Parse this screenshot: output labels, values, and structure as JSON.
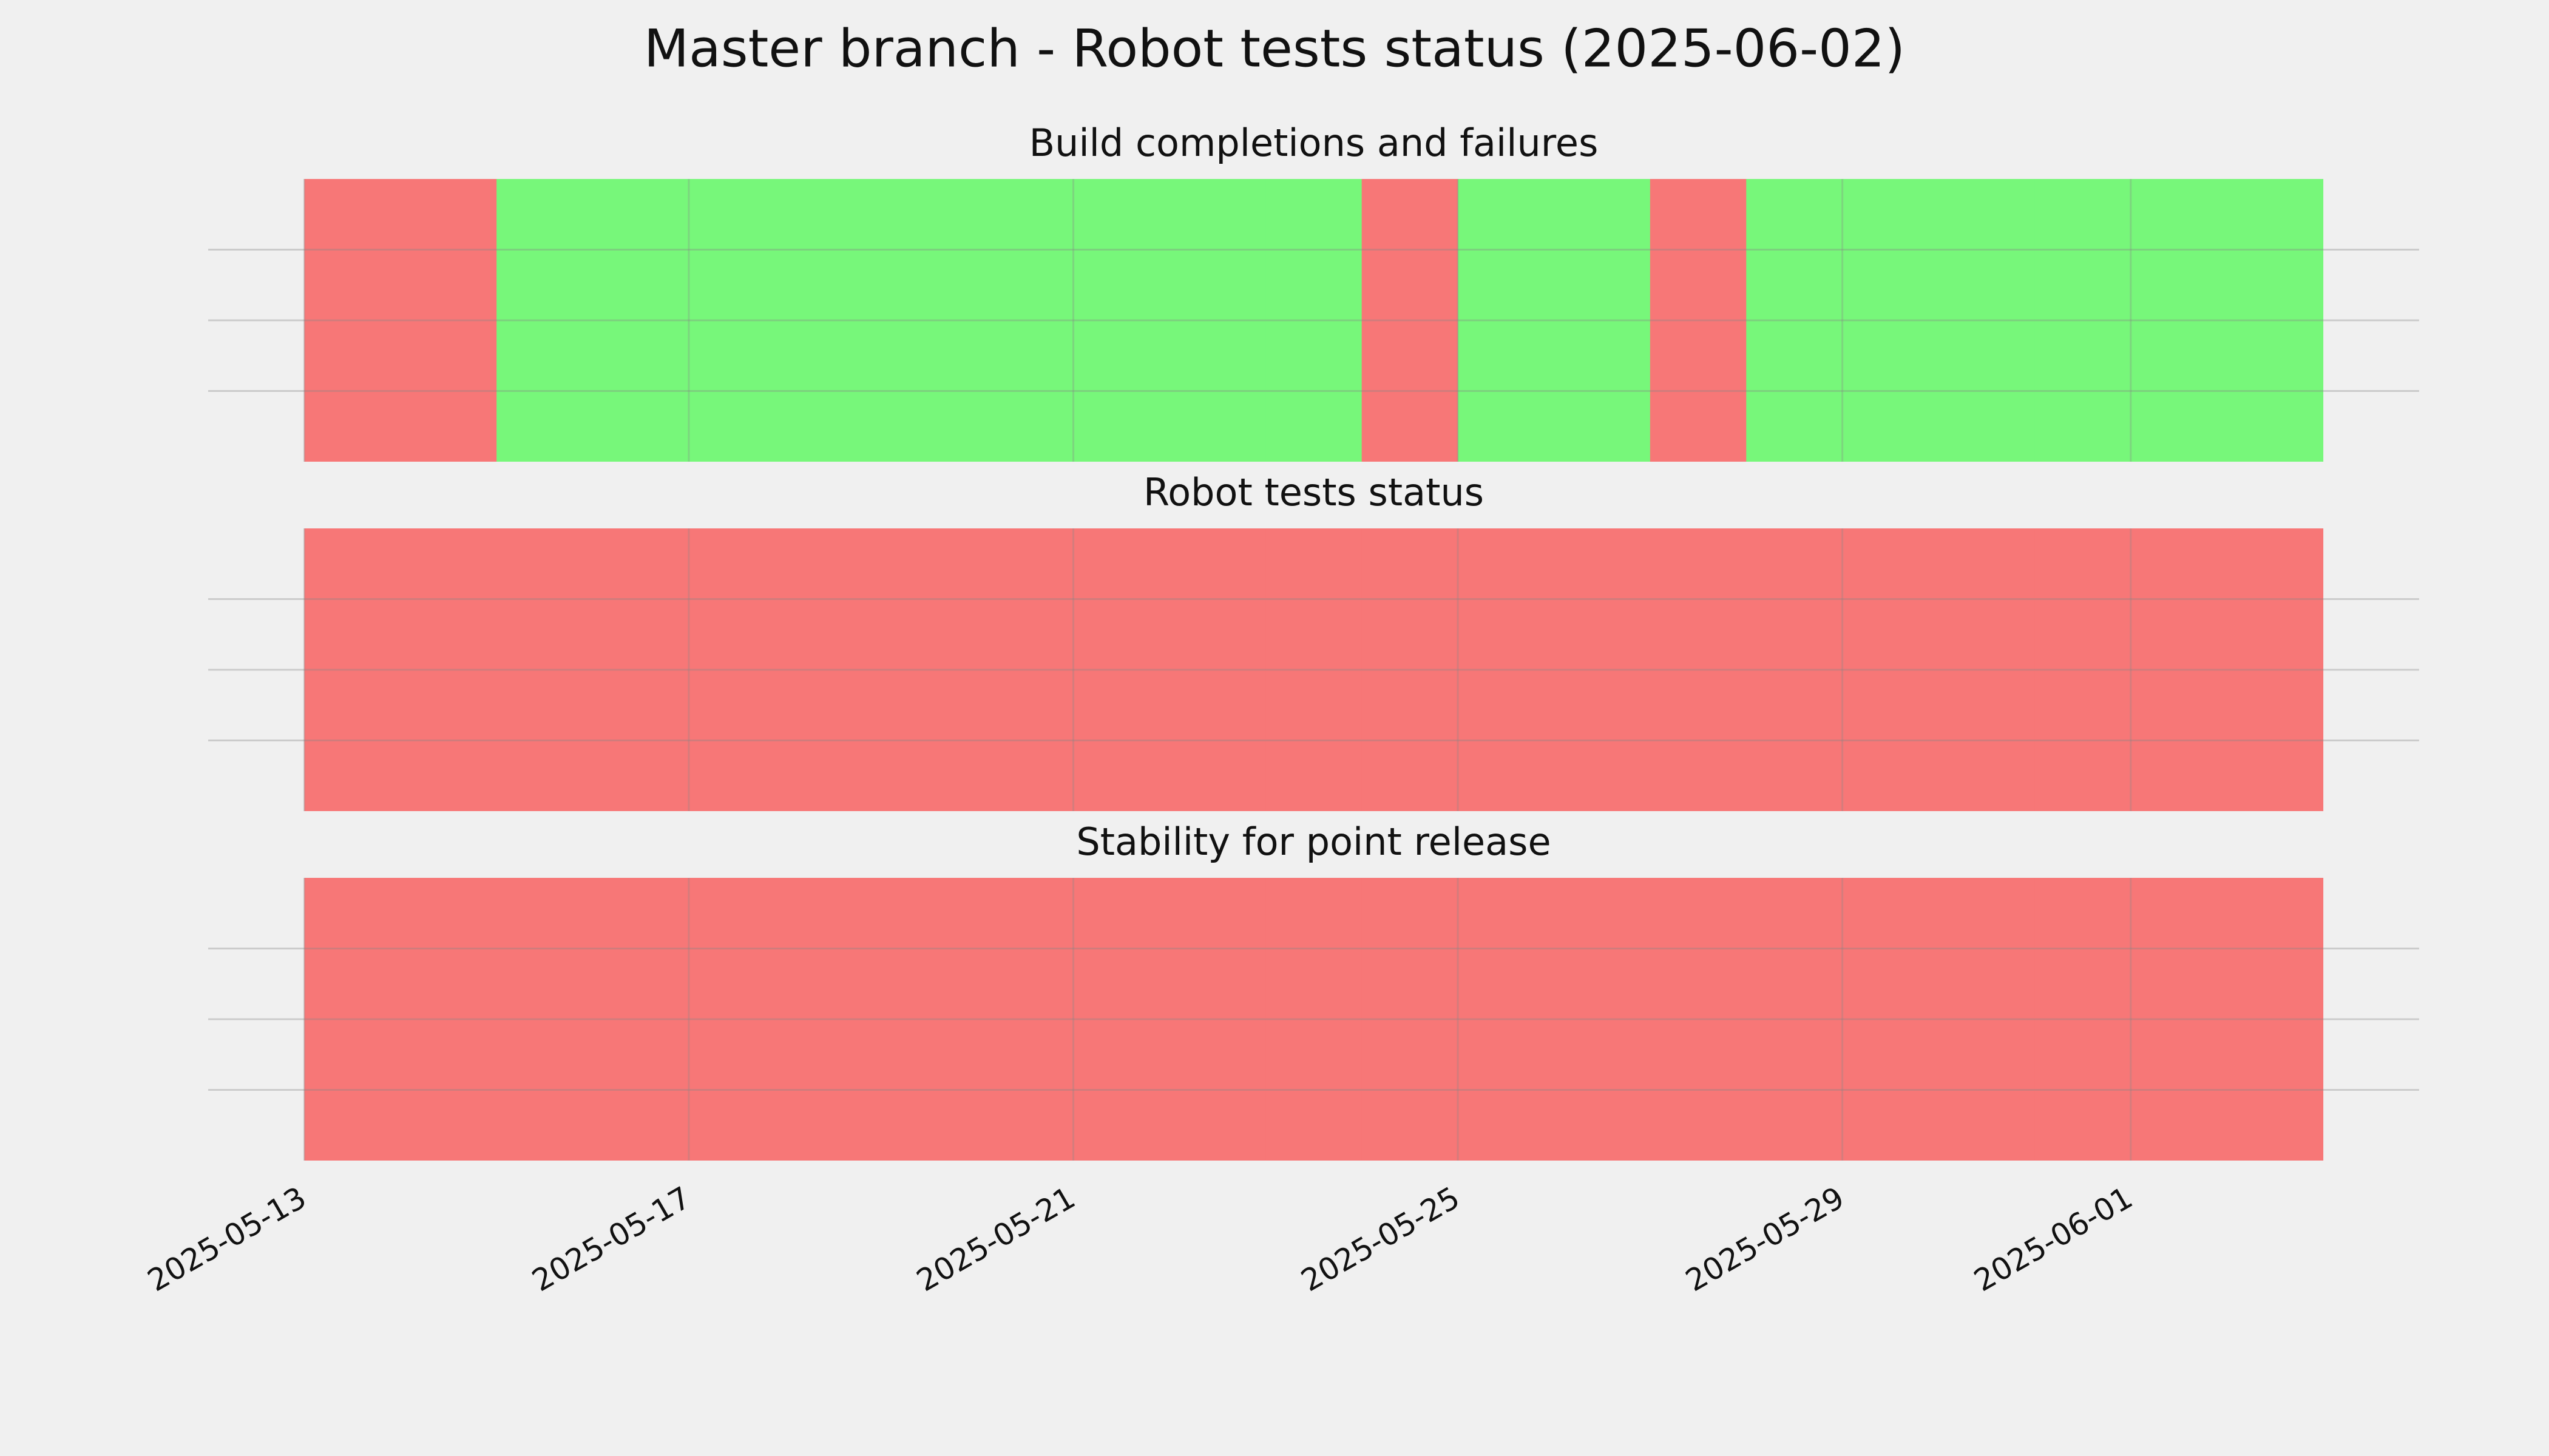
{
  "chart_data": [
    {
      "type": "status",
      "suptitle": "Master branch - Robot tests status (2025-06-02)",
      "title": "Build completions and failures",
      "x": [
        "2025-05-13",
        "2025-05-14",
        "2025-05-15",
        "2025-05-16",
        "2025-05-17",
        "2025-05-18",
        "2025-05-19",
        "2025-05-20",
        "2025-05-21",
        "2025-05-22",
        "2025-05-23",
        "2025-05-24",
        "2025-05-25",
        "2025-05-26",
        "2025-05-27",
        "2025-05-28",
        "2025-05-29",
        "2025-05-30",
        "2025-05-31",
        "2025-06-01",
        "2025-06-02"
      ],
      "values": [
        0,
        0,
        1,
        1,
        1,
        1,
        1,
        1,
        1,
        1,
        1,
        0,
        1,
        1,
        0,
        1,
        1,
        1,
        1,
        1,
        1
      ],
      "colors": [
        "#f77777",
        "#77f77a"
      ],
      "xlim": [
        "2025-05-12",
        "2025-06-04"
      ],
      "xticks": [
        "2025-05-13",
        "2025-05-17",
        "2025-05-21",
        "2025-05-25",
        "2025-05-29",
        "2025-06-01"
      ],
      "ylim": [
        0,
        1
      ],
      "yticks": [
        0.25,
        0.5,
        0.75
      ],
      "grid": true
    },
    {
      "type": "status",
      "title": "Robot tests status",
      "x": [
        "2025-05-13",
        "2025-05-14",
        "2025-05-15",
        "2025-05-16",
        "2025-05-17",
        "2025-05-18",
        "2025-05-19",
        "2025-05-20",
        "2025-05-21",
        "2025-05-22",
        "2025-05-23",
        "2025-05-24",
        "2025-05-25",
        "2025-05-26",
        "2025-05-27",
        "2025-05-28",
        "2025-05-29",
        "2025-05-30",
        "2025-05-31",
        "2025-06-01",
        "2025-06-02"
      ],
      "values": [
        0,
        0,
        0,
        0,
        0,
        0,
        0,
        0,
        0,
        0,
        0,
        0,
        0,
        0,
        0,
        0,
        0,
        0,
        0,
        0,
        0
      ],
      "colors": [
        "#f77777",
        "#77f77a"
      ],
      "xlim": [
        "2025-05-12",
        "2025-06-04"
      ],
      "xticks": [
        "2025-05-13",
        "2025-05-17",
        "2025-05-21",
        "2025-05-25",
        "2025-05-29",
        "2025-06-01"
      ],
      "ylim": [
        0,
        1
      ],
      "yticks": [
        0.25,
        0.5,
        0.75
      ],
      "grid": true
    },
    {
      "type": "status",
      "title": "Stability for point release",
      "x": [
        "2025-05-13",
        "2025-05-14",
        "2025-05-15",
        "2025-05-16",
        "2025-05-17",
        "2025-05-18",
        "2025-05-19",
        "2025-05-20",
        "2025-05-21",
        "2025-05-22",
        "2025-05-23",
        "2025-05-24",
        "2025-05-25",
        "2025-05-26",
        "2025-05-27",
        "2025-05-28",
        "2025-05-29",
        "2025-05-30",
        "2025-05-31",
        "2025-06-01",
        "2025-06-02"
      ],
      "values": [
        0,
        0,
        0,
        0,
        0,
        0,
        0,
        0,
        0,
        0,
        0,
        0,
        0,
        0,
        0,
        0,
        0,
        0,
        0,
        0,
        0
      ],
      "colors": [
        "#f77777",
        "#77f77a"
      ],
      "xlim": [
        "2025-05-12",
        "2025-06-04"
      ],
      "xticks": [
        "2025-05-13",
        "2025-05-17",
        "2025-05-21",
        "2025-05-25",
        "2025-05-29",
        "2025-06-01"
      ],
      "ylim": [
        0,
        1
      ],
      "yticks": [
        0.25,
        0.5,
        0.75
      ],
      "grid": true,
      "show_xticks": true
    }
  ]
}
